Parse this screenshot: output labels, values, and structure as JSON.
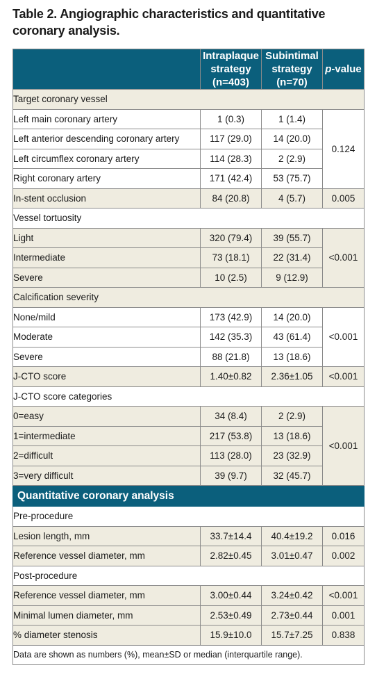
{
  "caption": "Table 2. Angiographic characteristics and quantitative coronary analysis.",
  "header": {
    "col2": [
      "Intraplaque",
      "strategy",
      "(n=403)"
    ],
    "col3": [
      "Subintimal",
      "strategy",
      "(n=70)"
    ],
    "col4_italic": "p",
    "col4_rest": "-value"
  },
  "rows": {
    "target_vessel": "Target coronary vessel",
    "lmca": {
      "label": "Left main coronary artery",
      "a": "1 (0.3)",
      "b": "1 (1.4)"
    },
    "lad": {
      "label": "Left anterior descending coronary artery",
      "a": "117 (29.0)",
      "b": "14 (20.0)"
    },
    "lcx": {
      "label": "Left circumflex coronary artery",
      "a": "114 (28.3)",
      "b": "2 (2.9)"
    },
    "rca": {
      "label": "Right coronary artery",
      "a": "171 (42.4)",
      "b": "53 (75.7)"
    },
    "target_p": "0.124",
    "isr": {
      "label": "In-stent occlusion",
      "a": "84 (20.8)",
      "b": "4 (5.7)",
      "p": "0.005"
    },
    "tortuosity": "Vessel tortuosity",
    "tort_light": {
      "label": "Light",
      "a": "320 (79.4)",
      "b": "39 (55.7)"
    },
    "tort_inter": {
      "label": "Intermediate",
      "a": "73 (18.1)",
      "b": "22 (31.4)"
    },
    "tort_severe": {
      "label": "Severe",
      "a": "10 (2.5)",
      "b": "9 (12.9)"
    },
    "tort_p": "<0.001",
    "calcification": "Calcification severity",
    "calc_none": {
      "label": "None/mild",
      "a": "173 (42.9)",
      "b": "14 (20.0)"
    },
    "calc_mod": {
      "label": "Moderate",
      "a": "142 (35.3)",
      "b": "43 (61.4)"
    },
    "calc_severe": {
      "label": "Severe",
      "a": "88 (21.8)",
      "b": "13 (18.6)"
    },
    "calc_p": "<0.001",
    "jcto": {
      "label": "J-CTO score",
      "a": "1.40±0.82",
      "b": "2.36±1.05",
      "p": "<0.001"
    },
    "jcto_cat": "J-CTO score categories",
    "jcto0": {
      "label": "0=easy",
      "a": "34 (8.4)",
      "b": "2 (2.9)"
    },
    "jcto1": {
      "label": "1=intermediate",
      "a": "217 (53.8)",
      "b": "13 (18.6)"
    },
    "jcto2": {
      "label": "2=difficult",
      "a": "113 (28.0)",
      "b": "23 (32.9)"
    },
    "jcto3": {
      "label": "3=very difficult",
      "a": "39 (9.7)",
      "b": "32 (45.7)"
    },
    "jcto_cat_p": "<0.001",
    "qca_section": "Quantitative coronary analysis",
    "pre": "Pre-procedure",
    "pre_len": {
      "label": "Lesion length, mm",
      "a": "33.7±14.4",
      "b": "40.4±19.2",
      "p": "0.016"
    },
    "pre_ref": {
      "label": "Reference vessel diameter, mm",
      "a": "2.82±0.45",
      "b": "3.01±0.47",
      "p": "0.002"
    },
    "post": "Post-procedure",
    "post_ref": {
      "label": "Reference vessel diameter, mm",
      "a": "3.00±0.44",
      "b": "3.24±0.42",
      "p": "<0.001"
    },
    "post_mld": {
      "label": "Minimal lumen diameter, mm",
      "a": "2.53±0.49",
      "b": "2.73±0.44",
      "p": "0.001"
    },
    "post_ds": {
      "label": "% diameter stenosis",
      "a": "15.9±10.0",
      "b": "15.7±7.25",
      "p": "0.838"
    }
  },
  "footnote": "Data are shown as numbers (%), mean±SD or median (interquartile range).",
  "colors": {
    "header_bg": "#0b5f7c",
    "shade_bg": "#efece0"
  }
}
